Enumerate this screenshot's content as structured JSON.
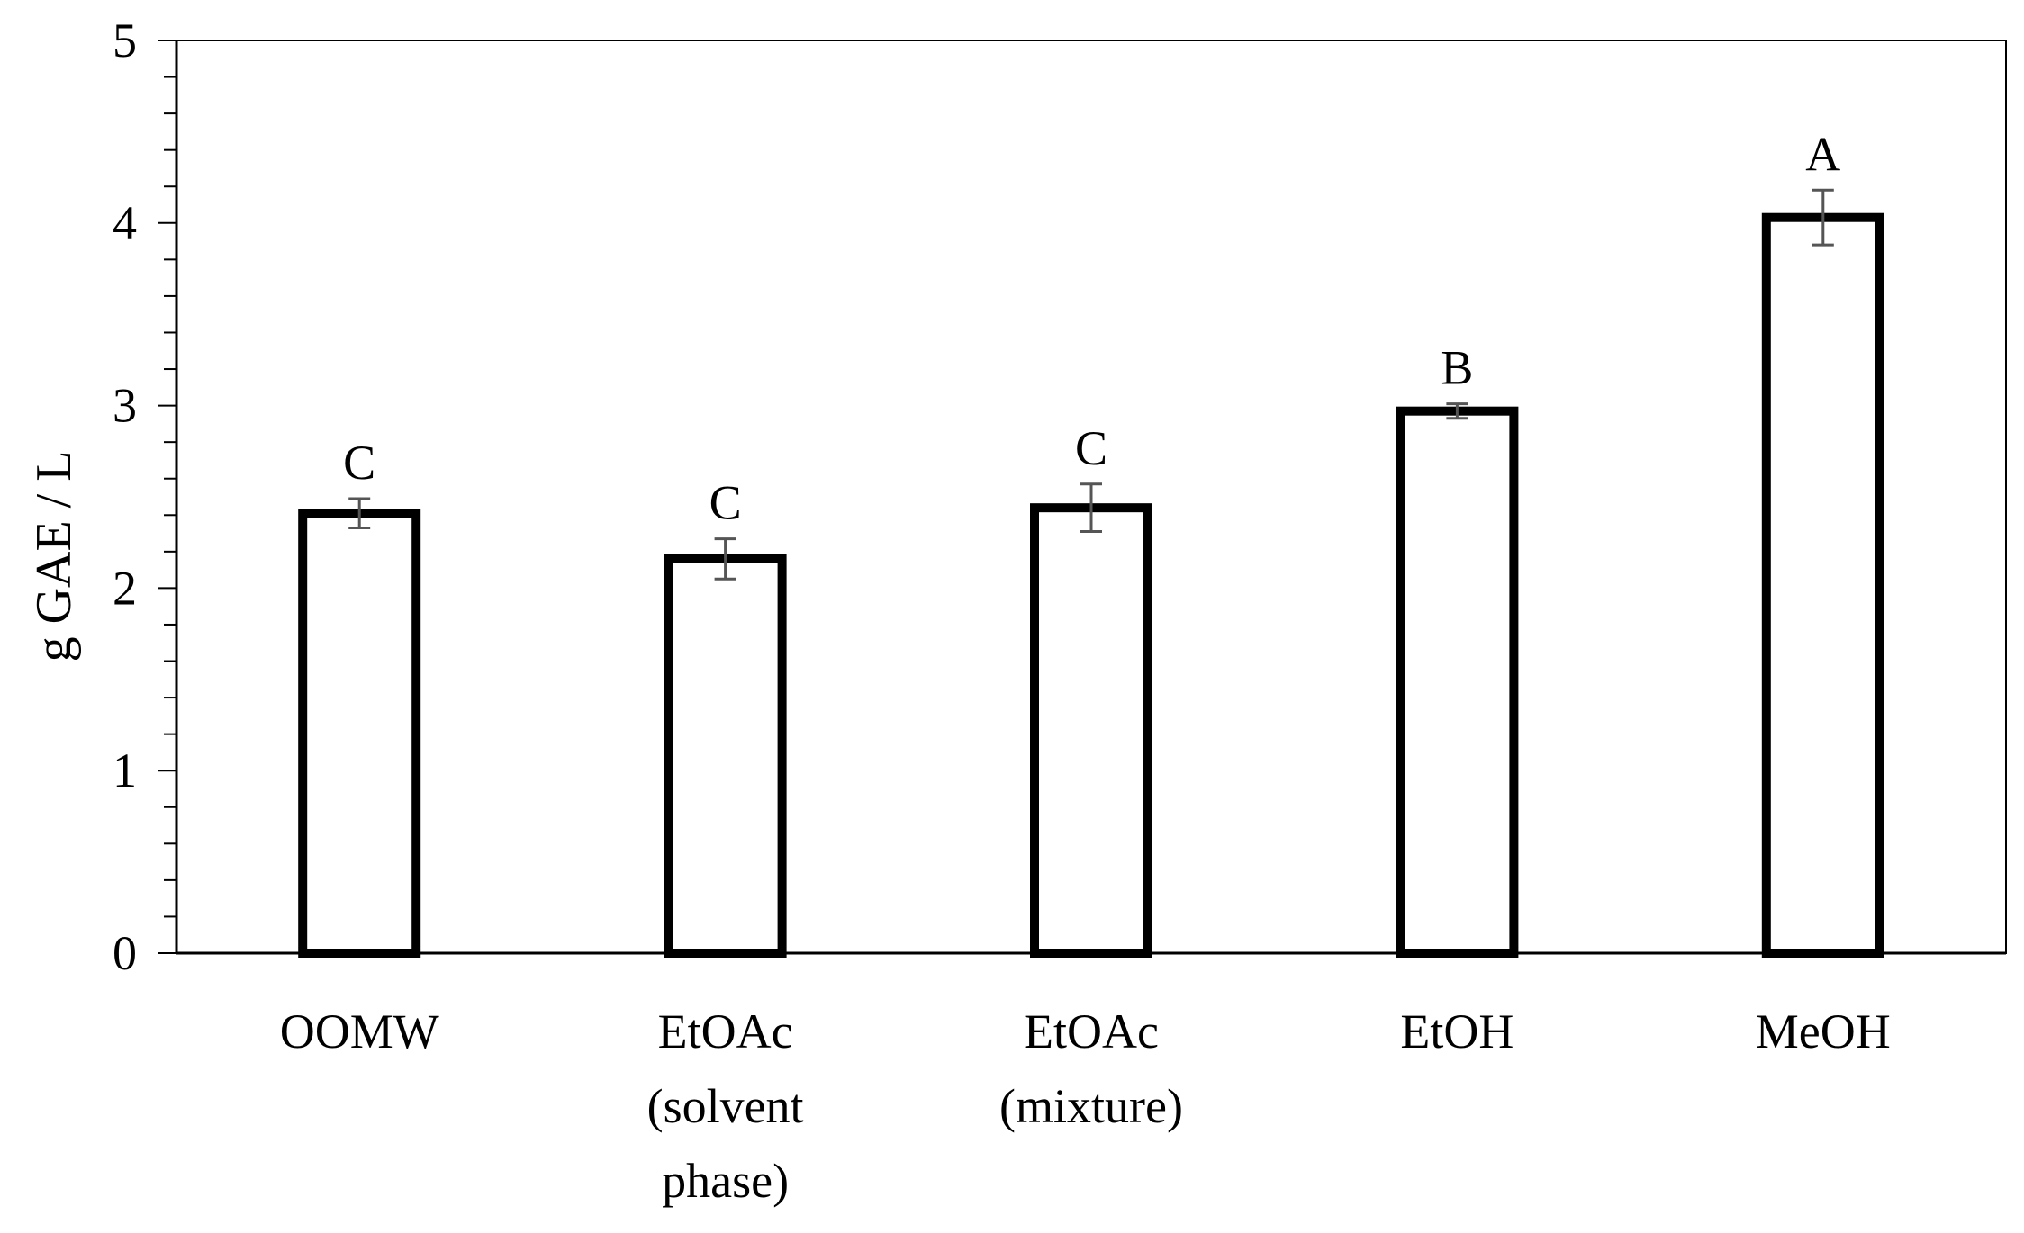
{
  "chart_data": {
    "type": "bar",
    "title": "",
    "xlabel": "",
    "ylabel": "g GAE / L",
    "ylim": [
      0,
      5
    ],
    "yticks": [
      "0",
      "1",
      "2",
      "3",
      "4",
      "5"
    ],
    "minor_tick_step": 0.2,
    "grid": false,
    "categories": [
      [
        "OOMW"
      ],
      [
        "EtOAc",
        "(solvent",
        "phase)"
      ],
      [
        "EtOAc",
        "(mixture)"
      ],
      [
        "EtOH"
      ],
      [
        "MeOH"
      ]
    ],
    "values": [
      2.41,
      2.16,
      2.44,
      2.97,
      4.03
    ],
    "errors": [
      0.08,
      0.11,
      0.13,
      0.04,
      0.15
    ],
    "significance_letters": [
      "C",
      "C",
      "C",
      "B",
      "A"
    ],
    "colors": {
      "bar_fill": "#ffffff",
      "bar_stroke": "#000000",
      "error_bar": "#555555",
      "axis": "#000000"
    }
  }
}
